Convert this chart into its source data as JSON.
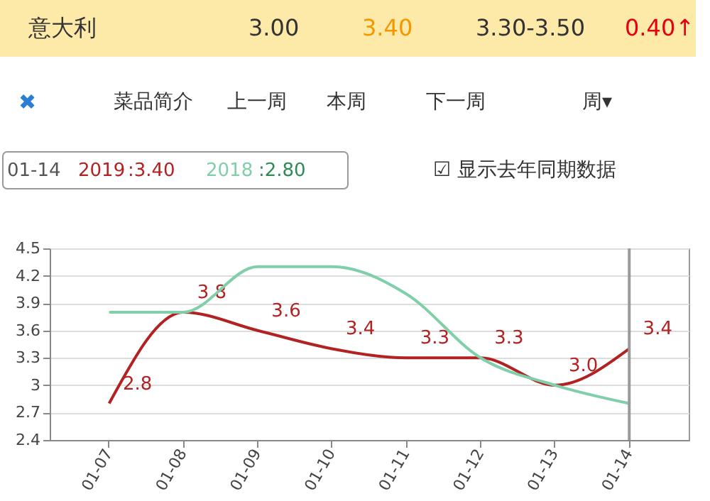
{
  "chart_data": {
    "type": "line",
    "categories": [
      "01-07",
      "01-08",
      "01-09",
      "01-10",
      "01-11",
      "01-12",
      "01-13",
      "01-14"
    ],
    "series": [
      {
        "name": "2019",
        "color": "#b22222",
        "values": [
          2.8,
          3.8,
          3.6,
          3.4,
          3.3,
          3.3,
          3.0,
          3.4
        ],
        "value_labels": [
          "2.8",
          "3.8",
          "3.6",
          "3.4",
          "3.3",
          "3.3",
          "3.0",
          "3.4"
        ]
      },
      {
        "name": "2018",
        "color": "#7fcfa8",
        "values": [
          3.8,
          3.8,
          4.3,
          4.3,
          4.0,
          3.3,
          3.0,
          2.8
        ]
      }
    ],
    "ylim": [
      2.4,
      4.5
    ],
    "yticks": [
      {
        "value": 2.4,
        "label": "2.4"
      },
      {
        "value": 2.7,
        "label": "2.7"
      },
      3,
      {
        "value": 3.3,
        "label": "3.3"
      },
      {
        "value": 3.6,
        "label": "3.6"
      },
      {
        "value": 3.9,
        "label": "3.9"
      },
      {
        "value": 4.2,
        "label": "4.2"
      },
      {
        "value": 4.5,
        "label": "4.5"
      }
    ],
    "ref_lines": [
      {
        "axis": "x",
        "value": "01-14",
        "color": "#999999"
      }
    ],
    "grid": "y",
    "marker": "none",
    "line_style": "solid",
    "annotations": [
      "意大利",
      "3.00",
      "3.40",
      "3.30-3.50",
      "0.40↑",
      "✖",
      "菜品简介",
      "上一周",
      "本周",
      "下一周",
      "周▾",
      "01-14",
      ":3.40",
      ":2.80",
      "☑ 显示去年同期数据"
    ]
  }
}
